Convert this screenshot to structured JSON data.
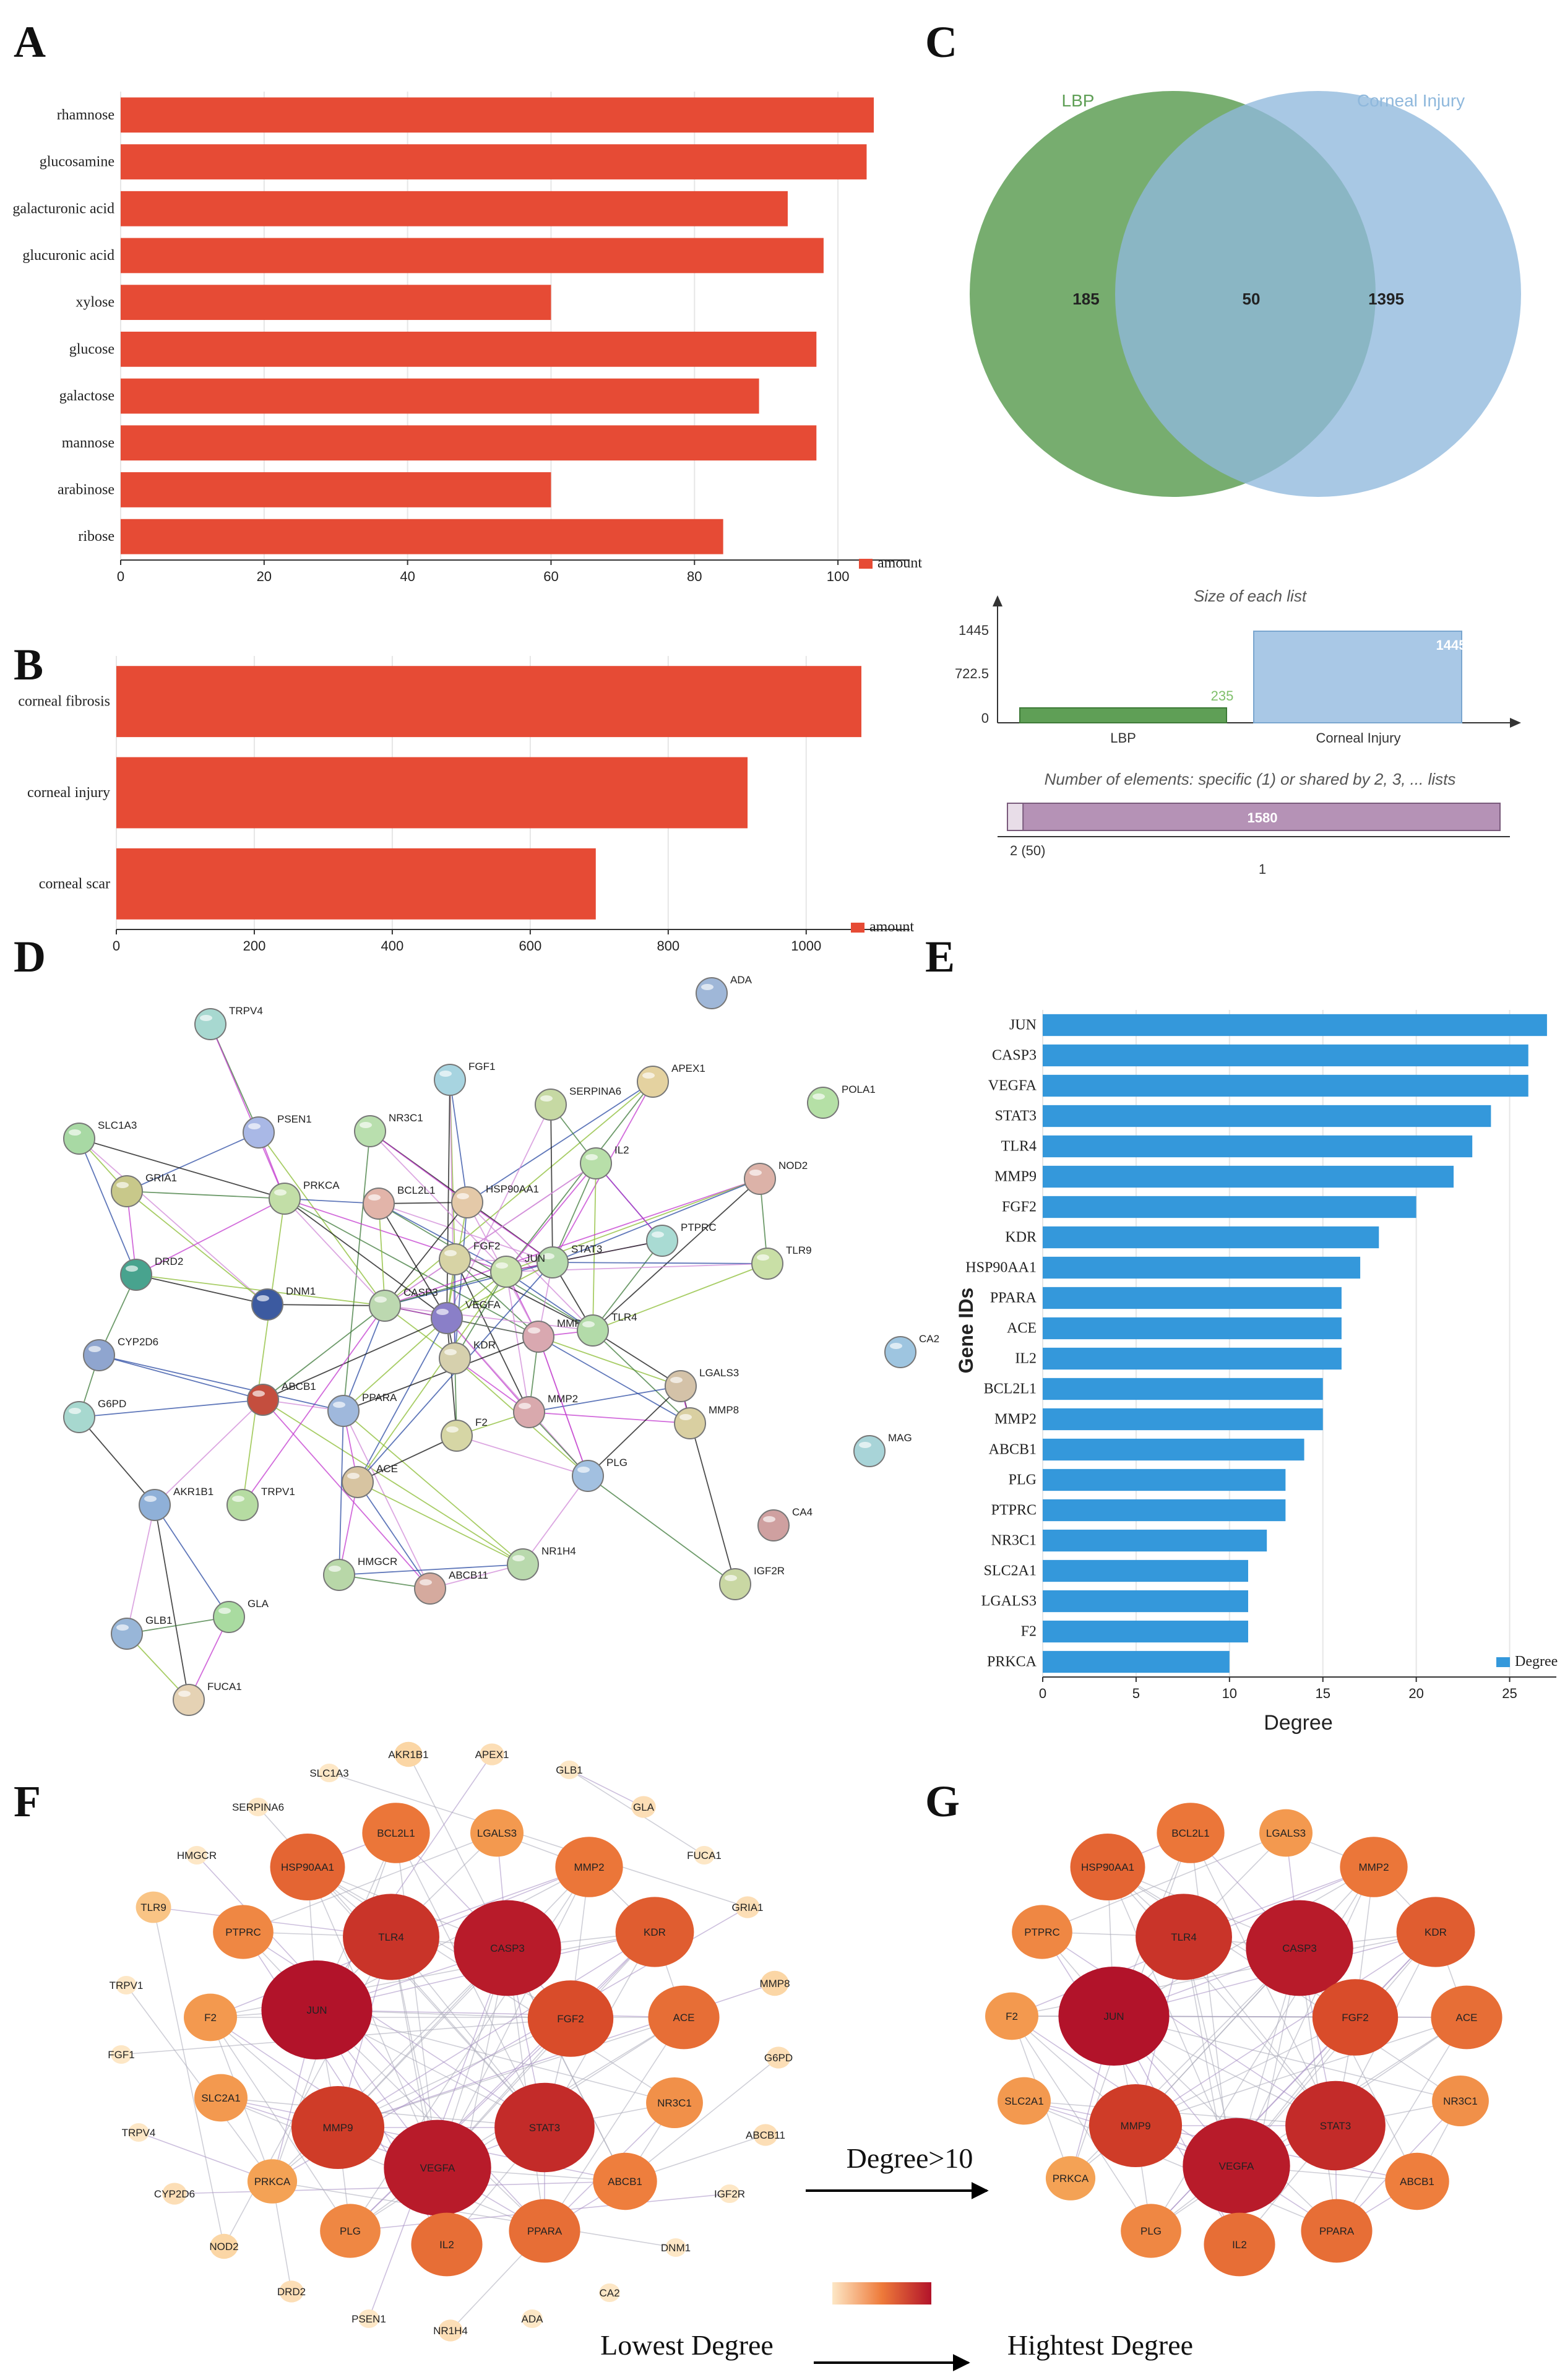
{
  "panel_labels": [
    "A",
    "B",
    "C",
    "D",
    "E",
    "F",
    "G"
  ],
  "colors": {
    "bar_red": "#e64b35",
    "bar_blue": "#3498db",
    "venn_green": "#5f9f56",
    "venn_blue": "#8fb8dc",
    "hist_purple": "#b592b6"
  },
  "chart_data": [
    {
      "id": "A",
      "type": "bar",
      "orientation": "horizontal",
      "categories": [
        "rhamnose",
        "glucosamine",
        "galacturonic acid",
        "glucuronic acid",
        "xylose",
        "glucose",
        "galactose",
        "mannose",
        "arabinose",
        "ribose"
      ],
      "values": [
        105,
        104,
        93,
        98,
        60,
        97,
        89,
        97,
        60,
        84
      ],
      "xlim": [
        0,
        110
      ],
      "xticks": [
        0,
        20,
        40,
        60,
        80,
        100
      ],
      "legend": "amount",
      "legend_position": "bottom-right"
    },
    {
      "id": "B",
      "type": "bar",
      "orientation": "horizontal",
      "categories": [
        "corneal fibrosis",
        "corneal injury",
        "corneal scar"
      ],
      "values": [
        1080,
        915,
        695
      ],
      "xlim": [
        0,
        1150
      ],
      "xticks": [
        0,
        200,
        400,
        600,
        800,
        1000
      ],
      "legend": "amount",
      "legend_position": "bottom-right"
    },
    {
      "id": "C",
      "type": "venn",
      "sets": [
        {
          "name": "LBP",
          "size": 235
        },
        {
          "name": "Corneal Injury",
          "size": 1445
        }
      ],
      "regions": {
        "left_only": "185",
        "overlap": "50",
        "right_only": "1395"
      },
      "size_chart": {
        "title": "Size of each list",
        "categories": [
          "LBP",
          "Corneal Injury"
        ],
        "values": [
          235,
          1445
        ],
        "value_labels": [
          "235",
          "1445"
        ],
        "yticks": [
          "1445",
          "722.5",
          "0"
        ]
      },
      "elements_chart": {
        "title": "Number of elements: specific (1) or shared by 2, 3, ... lists",
        "total_label": "1580",
        "shared_label": "2 (50)",
        "specific_label": "1",
        "shared": 50,
        "total": 1580
      }
    },
    {
      "id": "D",
      "type": "network",
      "nodes": [
        "ADA",
        "TRPV4",
        "APEX1",
        "FGF1",
        "SERPINA6",
        "POLA1",
        "PSEN1",
        "NR3C1",
        "SLC1A3",
        "IL2",
        "NOD2",
        "GRIA1",
        "PRKCA",
        "BCL2L1",
        "HSP90AA1",
        "PTPRC",
        "TLR9",
        "DRD2",
        "FGF2",
        "STAT3",
        "JUN",
        "DNM1",
        "CASP3",
        "VEGFA",
        "MMP9",
        "TLR4",
        "CYP2D6",
        "CA2",
        "KDR",
        "ABCB1",
        "LGALS3",
        "G6PD",
        "PPARA",
        "MMP2",
        "MMP8",
        "F2",
        "MAG",
        "TRPV1",
        "ACE",
        "PLG",
        "AKR1B1",
        "CA4",
        "HMGCR",
        "NR1H4",
        "IGF2R",
        "ABCB11",
        "GLA",
        "GLB1",
        "FUCA1"
      ]
    },
    {
      "id": "E",
      "type": "bar",
      "orientation": "horizontal",
      "categories": [
        "JUN",
        "CASP3",
        "VEGFA",
        "STAT3",
        "TLR4",
        "MMP9",
        "FGF2",
        "KDR",
        "HSP90AA1",
        "PPARA",
        "ACE",
        "IL2",
        "BCL2L1",
        "MMP2",
        "ABCB1",
        "PLG",
        "PTPRC",
        "NR3C1",
        "SLC2A1",
        "LGALS3",
        "F2",
        "PRKCA"
      ],
      "values": [
        27,
        26,
        26,
        24,
        23,
        22,
        20,
        18,
        17,
        16,
        16,
        16,
        15,
        15,
        14,
        13,
        13,
        12,
        11,
        11,
        11,
        10
      ],
      "xlim": [
        0,
        27.5
      ],
      "xticks": [
        0,
        5,
        10,
        15,
        20,
        25
      ],
      "xlabel": "Degree",
      "ylabel": "Gene IDs",
      "legend": "Degree",
      "legend_position": "bottom-right"
    },
    {
      "id": "F",
      "type": "network",
      "nodes": [
        {
          "name": "SLC1A3",
          "degree": 2
        },
        {
          "name": "AKR1B1",
          "degree": 4
        },
        {
          "name": "APEX1",
          "degree": 3
        },
        {
          "name": "GLB1",
          "degree": 2
        },
        {
          "name": "SERPINA6",
          "degree": 2
        },
        {
          "name": "GLA",
          "degree": 3
        },
        {
          "name": "BCL2L1",
          "degree": 15
        },
        {
          "name": "LGALS3",
          "degree": 11
        },
        {
          "name": "HMGCR",
          "degree": 2
        },
        {
          "name": "FUCA1",
          "degree": 2
        },
        {
          "name": "HSP90AA1",
          "degree": 17
        },
        {
          "name": "MMP2",
          "degree": 15
        },
        {
          "name": "TLR9",
          "degree": 6
        },
        {
          "name": "GRIA1",
          "degree": 3
        },
        {
          "name": "PTPRC",
          "degree": 13
        },
        {
          "name": "TLR4",
          "degree": 23
        },
        {
          "name": "CASP3",
          "degree": 26
        },
        {
          "name": "KDR",
          "degree": 18
        },
        {
          "name": "TRPV1",
          "degree": 2
        },
        {
          "name": "MMP8",
          "degree": 4
        },
        {
          "name": "F2",
          "degree": 11
        },
        {
          "name": "JUN",
          "degree": 27
        },
        {
          "name": "FGF2",
          "degree": 20
        },
        {
          "name": "ACE",
          "degree": 16
        },
        {
          "name": "G6PD",
          "degree": 3
        },
        {
          "name": "FGF1",
          "degree": 2
        },
        {
          "name": "SLC2A1",
          "degree": 11
        },
        {
          "name": "NR3C1",
          "degree": 12
        },
        {
          "name": "TRPV4",
          "degree": 2
        },
        {
          "name": "MMP9",
          "degree": 22
        },
        {
          "name": "STAT3",
          "degree": 24
        },
        {
          "name": "ABCB11",
          "degree": 3
        },
        {
          "name": "CYP2D6",
          "degree": 3
        },
        {
          "name": "PRKCA",
          "degree": 10
        },
        {
          "name": "VEGFA",
          "degree": 26
        },
        {
          "name": "ABCB1",
          "degree": 14
        },
        {
          "name": "IGF2R",
          "degree": 2
        },
        {
          "name": "NOD2",
          "degree": 4
        },
        {
          "name": "PLG",
          "degree": 13
        },
        {
          "name": "IL2",
          "degree": 16
        },
        {
          "name": "PPARA",
          "degree": 16
        },
        {
          "name": "DNM1",
          "degree": 2
        },
        {
          "name": "DRD2",
          "degree": 3
        },
        {
          "name": "PSEN1",
          "degree": 2
        },
        {
          "name": "NR1H4",
          "degree": 3
        },
        {
          "name": "ADA",
          "degree": 2
        },
        {
          "name": "CA2",
          "degree": 2
        }
      ]
    },
    {
      "id": "G",
      "type": "network",
      "filter": "Degree>10",
      "nodes": [
        {
          "name": "BCL2L1",
          "degree": 15
        },
        {
          "name": "LGALS3",
          "degree": 11
        },
        {
          "name": "HSP90AA1",
          "degree": 17
        },
        {
          "name": "MMP2",
          "degree": 15
        },
        {
          "name": "PTPRC",
          "degree": 13
        },
        {
          "name": "TLR4",
          "degree": 23
        },
        {
          "name": "CASP3",
          "degree": 26
        },
        {
          "name": "KDR",
          "degree": 18
        },
        {
          "name": "F2",
          "degree": 11
        },
        {
          "name": "JUN",
          "degree": 27
        },
        {
          "name": "FGF2",
          "degree": 20
        },
        {
          "name": "ACE",
          "degree": 16
        },
        {
          "name": "SLC2A1",
          "degree": 11
        },
        {
          "name": "NR3C1",
          "degree": 12
        },
        {
          "name": "MMP9",
          "degree": 22
        },
        {
          "name": "STAT3",
          "degree": 24
        },
        {
          "name": "PRKCA",
          "degree": 10
        },
        {
          "name": "VEGFA",
          "degree": 26
        },
        {
          "name": "ABCB1",
          "degree": 14
        },
        {
          "name": "PLG",
          "degree": 13
        },
        {
          "name": "IL2",
          "degree": 16
        },
        {
          "name": "PPARA",
          "degree": 16
        }
      ]
    }
  ],
  "arrow_label": "Degree>10",
  "gradient": {
    "low_label": "Lowest Degree",
    "high_label": "Hightest Degree"
  }
}
